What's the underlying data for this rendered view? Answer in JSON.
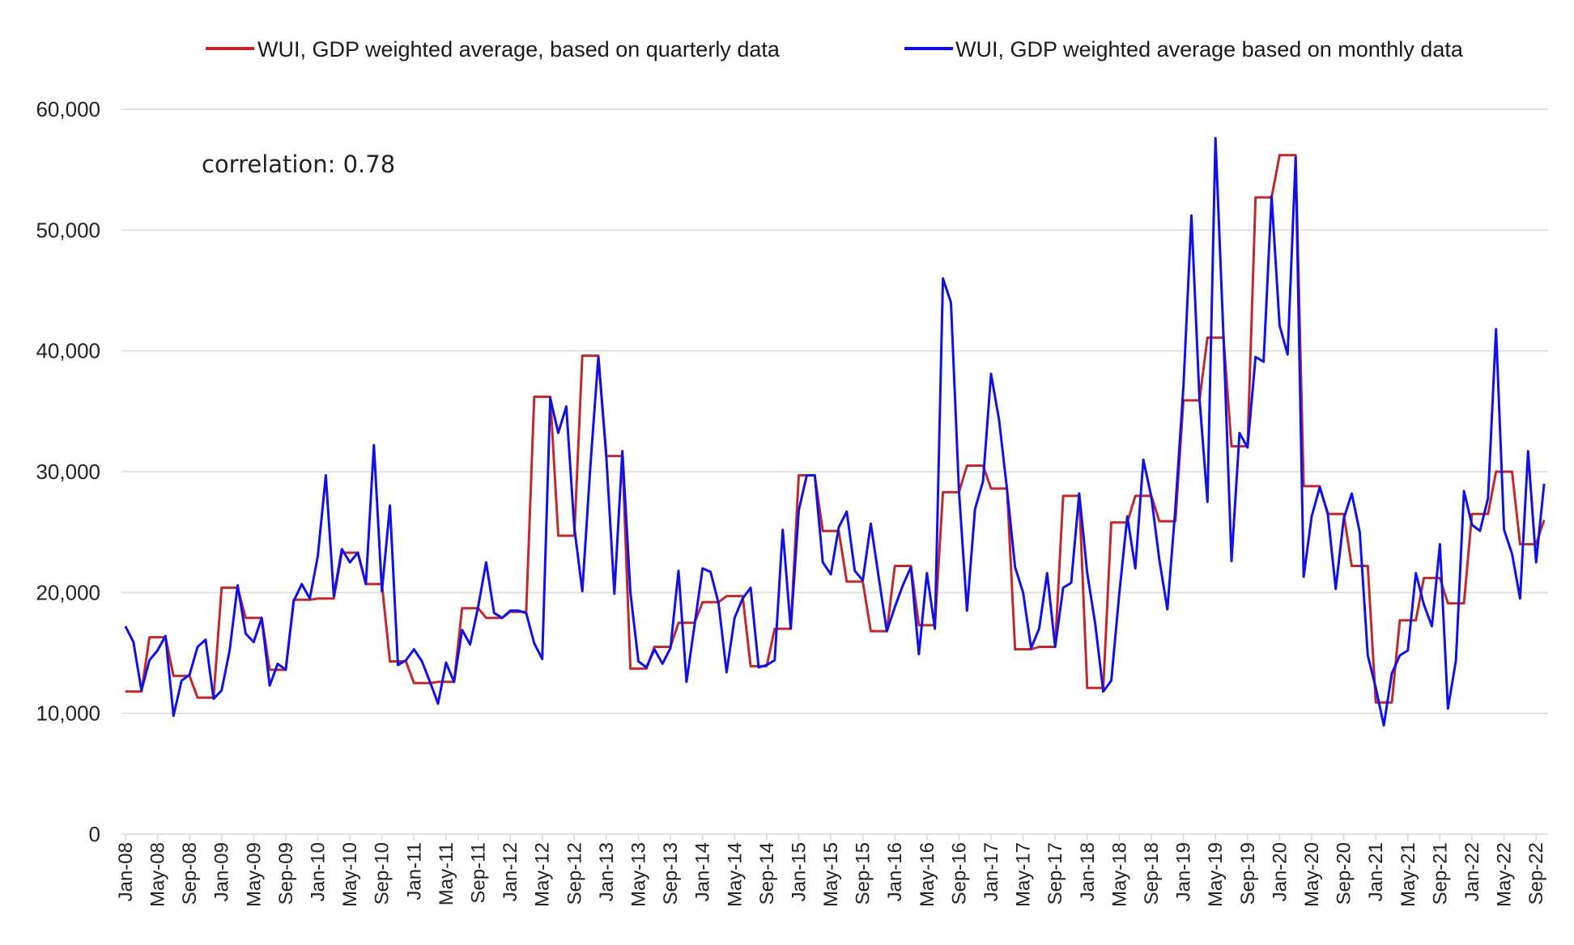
{
  "chart_data": {
    "type": "line",
    "title": "",
    "xlabel": "",
    "ylabel": "",
    "ylim": [
      0,
      60000
    ],
    "y_ticks": [
      0,
      10000,
      20000,
      30000,
      40000,
      50000,
      60000
    ],
    "y_tick_labels": [
      "0",
      "10,000",
      "20,000",
      "30,000",
      "40,000",
      "50,000",
      "60,000"
    ],
    "x_tick_labels": [
      "Jan-08",
      "May-08",
      "Sep-08",
      "Jan-09",
      "May-09",
      "Sep-09",
      "Jan-10",
      "May-10",
      "Sep-10",
      "Jan-11",
      "May-11",
      "Sep-11",
      "Jan-12",
      "May-12",
      "Sep-12",
      "Jan-13",
      "May-13",
      "Sep-13",
      "Jan-14",
      "May-14",
      "Sep-14",
      "Jan-15",
      "May-15",
      "Sep-15",
      "Jan-16",
      "May-16",
      "Sep-16",
      "Jan-17",
      "May-17",
      "Sep-17",
      "Jan-18",
      "May-18",
      "Sep-18",
      "Jan-19",
      "May-19",
      "Sep-19",
      "Jan-20",
      "May-20",
      "Sep-20",
      "Jan-21",
      "May-21",
      "Sep-21",
      "Jan-22",
      "May-22",
      "Sep-22"
    ],
    "grid": true,
    "legend_position": "top",
    "annotation": "correlation: 0.78",
    "series": [
      {
        "name": "WUI, GDP weighted average, based on quarterly data",
        "color": "#c0292b",
        "quarterly_values": [
          11800,
          16300,
          13100,
          11300,
          20400,
          17900,
          13600,
          19400,
          19500,
          23300,
          20700,
          14300,
          12500,
          12600,
          18700,
          17900,
          18400,
          36200,
          24700,
          39600,
          31300,
          13700,
          15500,
          17500,
          19200,
          19700,
          13900,
          17000,
          29700,
          25100,
          20900,
          16800,
          22200,
          17300,
          28300,
          30500,
          28600,
          15300,
          15500,
          28000,
          12100,
          25800,
          28000,
          25900,
          35900,
          41100,
          32100,
          52700,
          56200,
          28800,
          26500,
          22200,
          10900,
          17700,
          21200,
          19100,
          26500,
          30000,
          24000,
          26000
        ]
      },
      {
        "name": "WUI, GDP weighted average based on monthly data",
        "color": "#1010ee",
        "values": [
          17200,
          15900,
          11900,
          14400,
          15200,
          16400,
          9800,
          12700,
          13200,
          15500,
          16100,
          11200,
          11900,
          15200,
          20600,
          16600,
          15900,
          17900,
          12300,
          14100,
          13600,
          19300,
          20700,
          19500,
          23000,
          29700,
          19700,
          23600,
          22500,
          23300,
          20700,
          32200,
          20100,
          27200,
          14000,
          14400,
          15300,
          14300,
          12600,
          10800,
          14200,
          12600,
          16900,
          15700,
          18800,
          22500,
          18300,
          17900,
          18500,
          18500,
          18300,
          15800,
          14500,
          36100,
          33200,
          35400,
          25400,
          20100,
          30400,
          39500,
          31200,
          19900,
          31700,
          20000,
          14300,
          13800,
          15300,
          14100,
          15400,
          21800,
          12600,
          17300,
          22000,
          21700,
          19100,
          13400,
          17900,
          19500,
          20400,
          13800,
          14000,
          14400,
          25200,
          17000,
          26800,
          29700,
          29700,
          22500,
          21500,
          25400,
          26700,
          21800,
          21000,
          25700,
          21200,
          16800,
          18800,
          20600,
          22100,
          14900,
          21600,
          17000,
          46000,
          44000,
          28400,
          18500,
          26900,
          29200,
          38100,
          34300,
          28500,
          22100,
          20000,
          15400,
          17000,
          21600,
          15500,
          20400,
          20800,
          28200,
          21600,
          17400,
          11800,
          12700,
          19900,
          26300,
          22000,
          31000,
          27900,
          22700,
          18600,
          27000,
          37000,
          51200,
          36100,
          27500,
          57600,
          41200,
          22600,
          33200,
          32000,
          39500,
          39100,
          52800,
          42100,
          39700,
          56000,
          21300,
          26300,
          28700,
          26600,
          20300,
          26100,
          28200,
          25000,
          14800,
          12100,
          9000,
          13300,
          14800,
          15200,
          21600,
          19000,
          17200,
          24000,
          10400,
          14400,
          28400,
          25600,
          25100,
          27800,
          41800,
          25200,
          23200,
          19500,
          31700,
          22500,
          29000
        ]
      }
    ]
  }
}
